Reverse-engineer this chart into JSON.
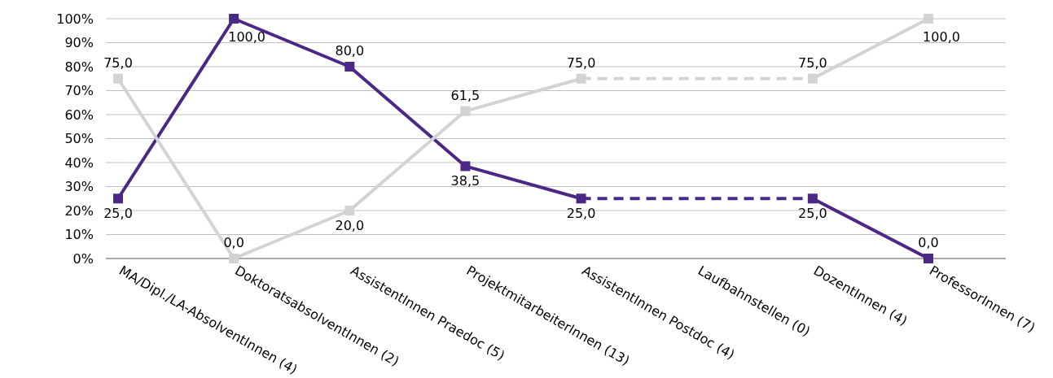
{
  "chart_data": {
    "type": "line",
    "categories": [
      "MA/Dipl./LA-AbsolventInnen (4)",
      "DoktoratsabsolventInnen (2)",
      "AssistentInnen Praedoc (5)",
      "ProjektmitarbeiterInnen (13)",
      "AssistentInnen Postdoc (4)",
      "Laufbahnstellen (0)",
      "DozentInnen (4)",
      "ProfessorInnen (7)"
    ],
    "series": [
      {
        "color": "#4b2885",
        "values": [
          25,
          100,
          80,
          38.5,
          25,
          null,
          25,
          0
        ],
        "value_labels": [
          "25,0",
          "100,0",
          "80,0",
          "38,5",
          "25,0",
          null,
          "25,0",
          "0,0"
        ]
      },
      {
        "color": "#d3d3d3",
        "values": [
          75,
          0,
          20,
          61.5,
          75,
          null,
          75,
          100
        ],
        "value_labels": [
          "75,0",
          "0,0",
          "20,0",
          "61,5",
          "75,0",
          null,
          "75,0",
          "100,0"
        ]
      }
    ],
    "ylim": [
      0,
      100
    ],
    "yticks": [
      {
        "value": 0,
        "label": "0%"
      },
      {
        "value": 10,
        "label": "10%"
      },
      {
        "value": 20,
        "label": "20%"
      },
      {
        "value": 30,
        "label": "30%"
      },
      {
        "value": 40,
        "label": "40%"
      },
      {
        "value": 50,
        "label": "50%"
      },
      {
        "value": 60,
        "label": "60%"
      },
      {
        "value": 70,
        "label": "70%"
      },
      {
        "value": 80,
        "label": "80%"
      },
      {
        "value": 90,
        "label": "90%"
      },
      {
        "value": 100,
        "label": "100%"
      }
    ],
    "grid": "y",
    "marker": "square",
    "line_style": "solid"
  }
}
